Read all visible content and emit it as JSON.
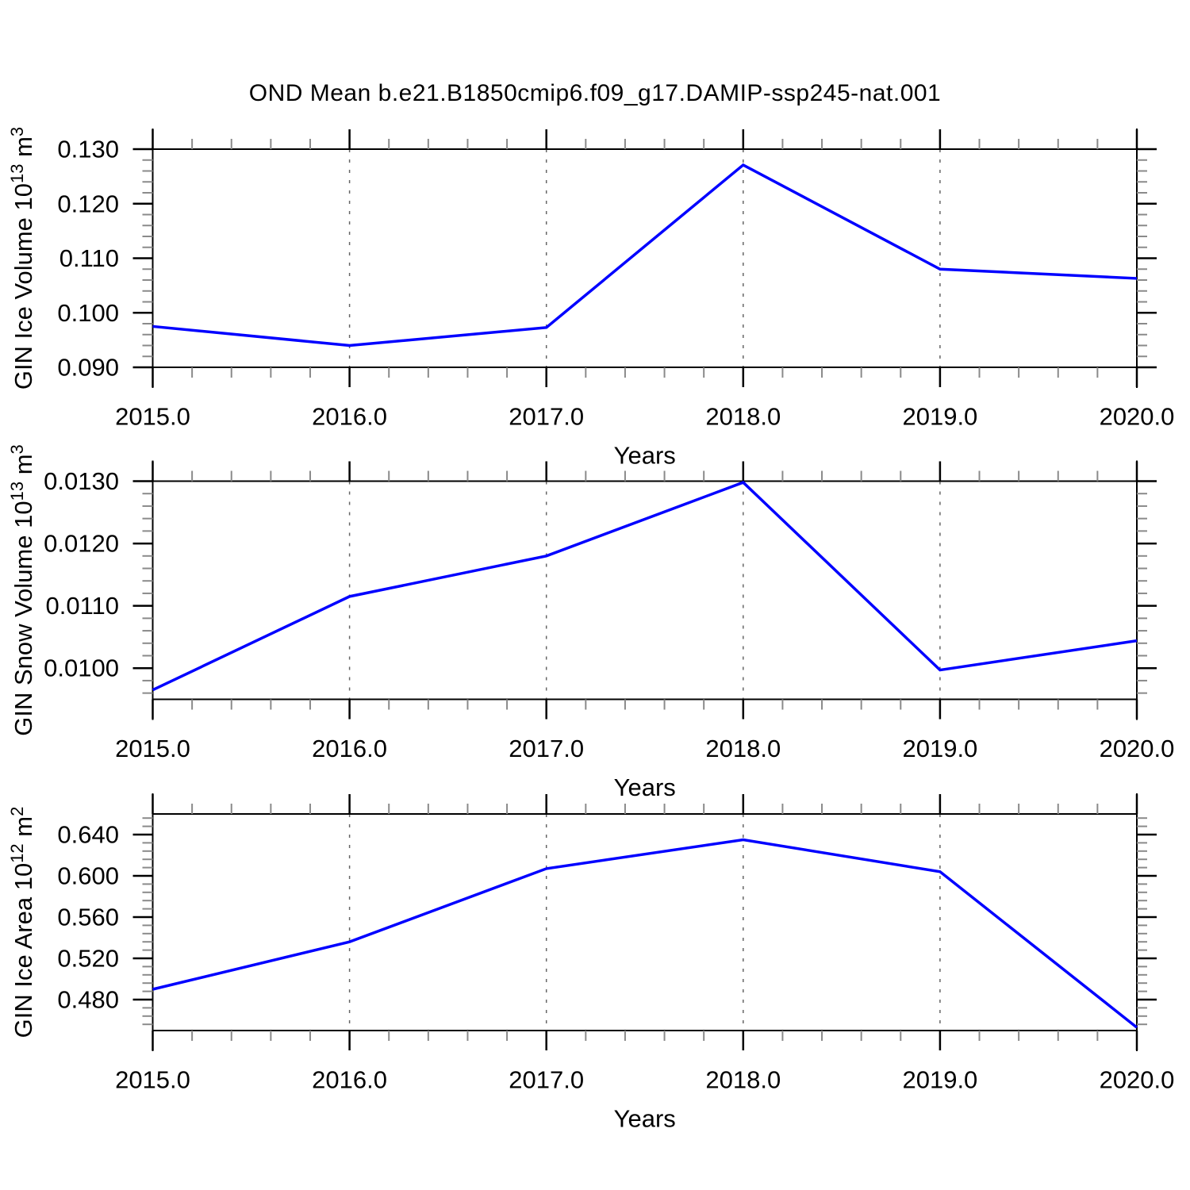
{
  "page": {
    "background": "#ffffff"
  },
  "header": {
    "title": "OND Mean b.e21.B1850cmip6.f09_g17.DAMIP-ssp245-nat.001"
  },
  "style_colors": {
    "line": "#0000ff",
    "axis": "#000000",
    "major_tick": "#000000",
    "minor_tick": "#8a8a8a",
    "grid": "#666666",
    "text": "#000000"
  },
  "chart_data": [
    {
      "type": "line",
      "ylabel_parts": [
        {
          "text": "GIN Ice Volume 10"
        },
        {
          "sup": "13"
        },
        {
          "text": " m"
        },
        {
          "sup": "3"
        }
      ],
      "xlabel": "Years",
      "x": [
        2015.0,
        2016.0,
        2017.0,
        2018.0,
        2019.0,
        2020.0
      ],
      "values": [
        0.0975,
        0.094,
        0.0973,
        0.1271,
        0.108,
        0.1063
      ],
      "xlim": [
        2015.0,
        2020.0
      ],
      "ylim": [
        0.09,
        0.13
      ],
      "x_major_ticks": [
        2015.0,
        2016.0,
        2017.0,
        2018.0,
        2019.0,
        2020.0
      ],
      "x_tick_labels": [
        "2015.0",
        "2016.0",
        "2017.0",
        "2018.0",
        "2019.0",
        "2020.0"
      ],
      "x_minor_step": 0.2,
      "y_major_ticks": [
        0.09,
        0.1,
        0.11,
        0.12,
        0.13
      ],
      "y_tick_labels": [
        "0.090",
        "0.100",
        "0.110",
        "0.120",
        "0.130"
      ],
      "y_minor_step": 0.002,
      "grid_x": [
        2016.0,
        2017.0,
        2018.0,
        2019.0
      ],
      "grid_on": true,
      "legend": "none"
    },
    {
      "type": "line",
      "ylabel_parts": [
        {
          "text": "GIN Snow Volume 10"
        },
        {
          "sup": "13"
        },
        {
          "text": " m"
        },
        {
          "sup": "3"
        }
      ],
      "xlabel": "Years",
      "x": [
        2015.0,
        2016.0,
        2017.0,
        2018.0,
        2019.0,
        2020.0
      ],
      "values": [
        0.00965,
        0.01115,
        0.0118,
        0.01298,
        0.00997,
        0.01044
      ],
      "xlim": [
        2015.0,
        2020.0
      ],
      "ylim": [
        0.0095,
        0.013
      ],
      "x_major_ticks": [
        2015.0,
        2016.0,
        2017.0,
        2018.0,
        2019.0,
        2020.0
      ],
      "x_tick_labels": [
        "2015.0",
        "2016.0",
        "2017.0",
        "2018.0",
        "2019.0",
        "2020.0"
      ],
      "x_minor_step": 0.2,
      "y_major_ticks": [
        0.01,
        0.011,
        0.012,
        0.013
      ],
      "y_tick_labels": [
        "0.0100",
        "0.0110",
        "0.0120",
        "0.0130"
      ],
      "y_minor_step": 0.0002,
      "grid_x": [
        2016.0,
        2017.0,
        2018.0,
        2019.0
      ],
      "grid_on": true,
      "legend": "none"
    },
    {
      "type": "line",
      "ylabel_parts": [
        {
          "text": "GIN Ice Area 10"
        },
        {
          "sup": "12"
        },
        {
          "text": " m"
        },
        {
          "sup": "2"
        }
      ],
      "xlabel": "Years",
      "x": [
        2015.0,
        2016.0,
        2017.0,
        2018.0,
        2019.0,
        2020.0
      ],
      "values": [
        0.49,
        0.536,
        0.607,
        0.635,
        0.604,
        0.453
      ],
      "xlim": [
        2015.0,
        2020.0
      ],
      "ylim": [
        0.45,
        0.66
      ],
      "x_major_ticks": [
        2015.0,
        2016.0,
        2017.0,
        2018.0,
        2019.0,
        2020.0
      ],
      "x_tick_labels": [
        "2015.0",
        "2016.0",
        "2017.0",
        "2018.0",
        "2019.0",
        "2020.0"
      ],
      "x_minor_step": 0.2,
      "y_major_ticks": [
        0.48,
        0.52,
        0.56,
        0.6,
        0.64
      ],
      "y_tick_labels": [
        "0.480",
        "0.520",
        "0.560",
        "0.600",
        "0.640"
      ],
      "y_minor_step": 0.008,
      "grid_x": [
        2016.0,
        2017.0,
        2018.0,
        2019.0
      ],
      "grid_on": true,
      "legend": "none"
    }
  ]
}
